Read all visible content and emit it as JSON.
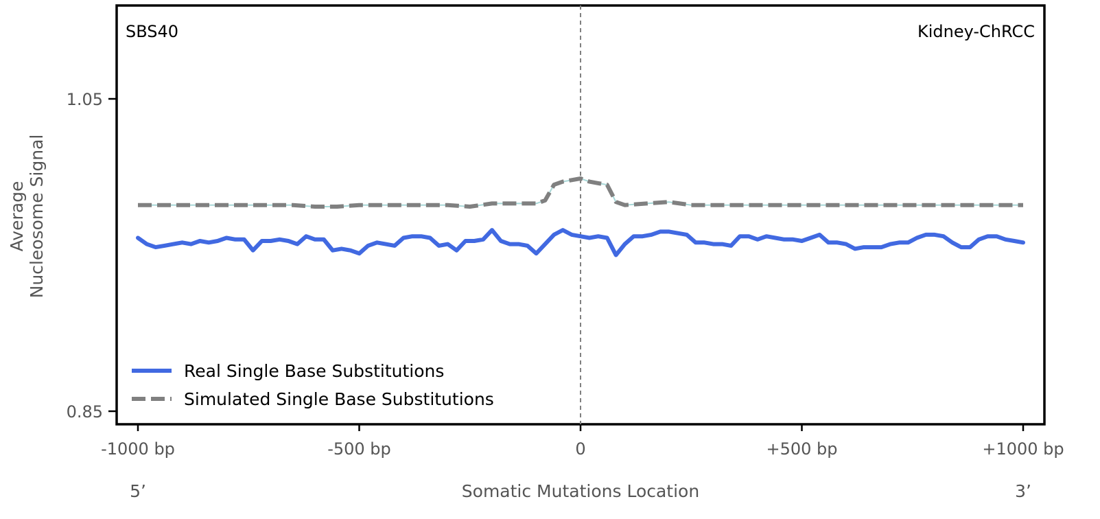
{
  "chart_data": {
    "type": "line",
    "signature_label": "SBS40",
    "cancer_type_label": "Kidney-ChRCC",
    "ylabel_line1": "Average",
    "ylabel_line2": "Nucleosome Signal",
    "xlabel": "Somatic Mutations Location",
    "end_label_left": "5’",
    "end_label_right": "3’",
    "xlim": [
      -1000,
      1000
    ],
    "ylim": [
      0.84,
      1.11
    ],
    "x_ticks": [
      {
        "value": -1000,
        "label": "-1000 bp"
      },
      {
        "value": -500,
        "label": "-500 bp"
      },
      {
        "value": 0,
        "label": "0"
      },
      {
        "value": 500,
        "label": "+500 bp"
      },
      {
        "value": 1000,
        "label": "+1000 bp"
      }
    ],
    "y_ticks": [
      {
        "value": 0.85,
        "label": "0.85"
      },
      {
        "value": 1.05,
        "label": "1.05"
      }
    ],
    "center_line": 0,
    "grid": false,
    "legend_position": "lower-left",
    "series": [
      {
        "name": "Real Single Base Substitutions",
        "color": "#4169e1",
        "dash": "solid",
        "x": [
          -1000,
          -980,
          -960,
          -940,
          -920,
          -900,
          -880,
          -860,
          -840,
          -820,
          -800,
          -780,
          -760,
          -740,
          -720,
          -700,
          -680,
          -660,
          -640,
          -620,
          -600,
          -580,
          -560,
          -540,
          -520,
          -500,
          -480,
          -460,
          -440,
          -420,
          -400,
          -380,
          -360,
          -340,
          -320,
          -300,
          -280,
          -260,
          -240,
          -220,
          -200,
          -180,
          -160,
          -140,
          -120,
          -100,
          -80,
          -60,
          -40,
          -20,
          0,
          20,
          40,
          60,
          80,
          100,
          120,
          140,
          160,
          180,
          200,
          220,
          240,
          260,
          280,
          300,
          320,
          340,
          360,
          380,
          400,
          420,
          440,
          460,
          480,
          500,
          520,
          540,
          560,
          580,
          600,
          620,
          640,
          660,
          680,
          700,
          720,
          740,
          760,
          780,
          800,
          820,
          840,
          860,
          880,
          900,
          920,
          940,
          960,
          980,
          1000
        ],
        "y": [
          0.961,
          0.957,
          0.955,
          0.956,
          0.957,
          0.958,
          0.957,
          0.959,
          0.958,
          0.959,
          0.961,
          0.96,
          0.96,
          0.953,
          0.959,
          0.959,
          0.96,
          0.959,
          0.957,
          0.962,
          0.96,
          0.96,
          0.953,
          0.954,
          0.953,
          0.951,
          0.956,
          0.958,
          0.957,
          0.956,
          0.961,
          0.962,
          0.962,
          0.961,
          0.956,
          0.957,
          0.953,
          0.959,
          0.959,
          0.96,
          0.966,
          0.959,
          0.957,
          0.957,
          0.956,
          0.951,
          0.957,
          0.963,
          0.966,
          0.963,
          0.962,
          0.961,
          0.962,
          0.961,
          0.95,
          0.957,
          0.962,
          0.962,
          0.963,
          0.965,
          0.965,
          0.964,
          0.963,
          0.958,
          0.958,
          0.957,
          0.957,
          0.956,
          0.962,
          0.962,
          0.96,
          0.962,
          0.961,
          0.96,
          0.96,
          0.959,
          0.961,
          0.963,
          0.958,
          0.958,
          0.957,
          0.954,
          0.955,
          0.955,
          0.955,
          0.957,
          0.958,
          0.958,
          0.961,
          0.963,
          0.963,
          0.962,
          0.958,
          0.955,
          0.955,
          0.96,
          0.962,
          0.962,
          0.96,
          0.959,
          0.958
        ]
      },
      {
        "name": "Simulated Single Base Substitutions",
        "color": "#808080",
        "dash": "dashed",
        "x": [
          -1000,
          -950,
          -900,
          -850,
          -800,
          -750,
          -700,
          -650,
          -600,
          -550,
          -500,
          -450,
          -400,
          -350,
          -300,
          -250,
          -200,
          -150,
          -100,
          -80,
          -60,
          -40,
          -20,
          0,
          20,
          40,
          60,
          80,
          100,
          150,
          200,
          250,
          300,
          350,
          400,
          450,
          500,
          550,
          600,
          650,
          700,
          750,
          800,
          850,
          900,
          950,
          1000
        ],
        "y": [
          0.982,
          0.982,
          0.982,
          0.982,
          0.982,
          0.982,
          0.982,
          0.982,
          0.981,
          0.981,
          0.982,
          0.982,
          0.982,
          0.982,
          0.982,
          0.981,
          0.983,
          0.983,
          0.983,
          0.985,
          0.995,
          0.997,
          0.998,
          0.999,
          0.997,
          0.996,
          0.995,
          0.984,
          0.982,
          0.983,
          0.984,
          0.982,
          0.982,
          0.982,
          0.982,
          0.982,
          0.982,
          0.982,
          0.982,
          0.982,
          0.982,
          0.982,
          0.982,
          0.982,
          0.982,
          0.982,
          0.982
        ]
      }
    ]
  }
}
